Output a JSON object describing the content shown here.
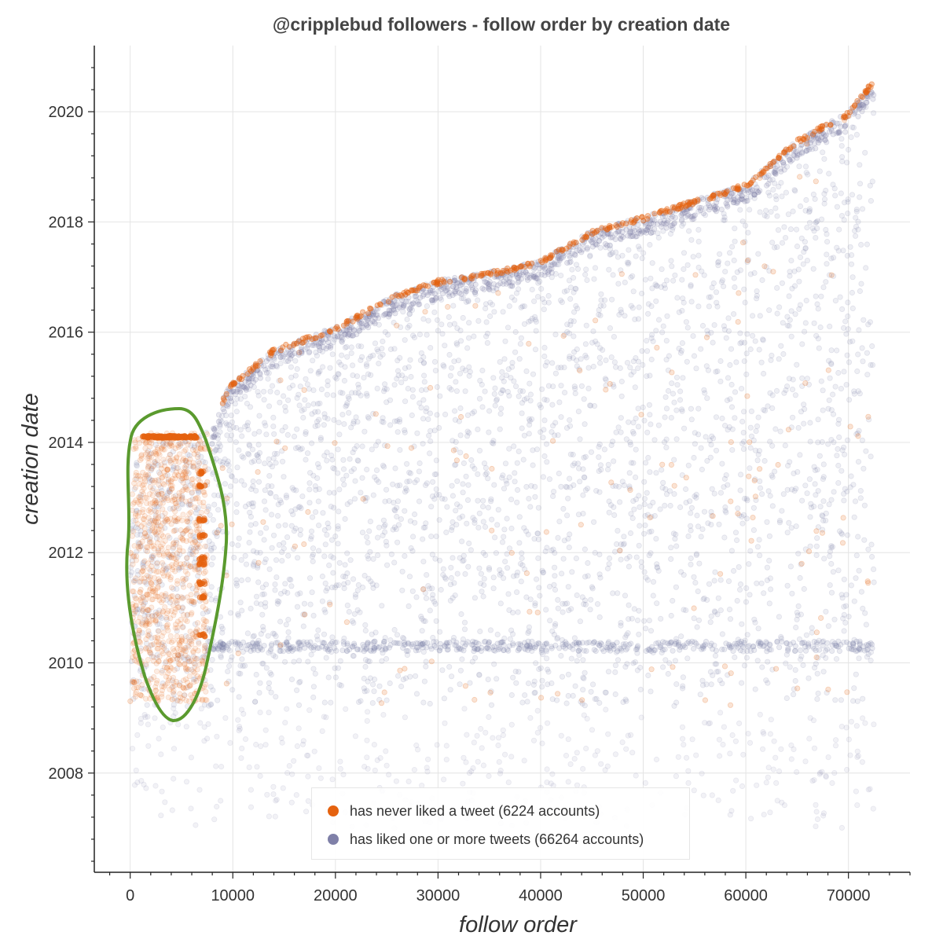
{
  "chart_data": {
    "type": "scatter",
    "title": "@cripplebud followers - follow order by creation date",
    "xlabel": "follow order",
    "ylabel": "creation date",
    "xlim": [
      -3500,
      76000
    ],
    "ylim": [
      2006.2,
      2021.2
    ],
    "x_ticks": [
      0,
      10000,
      20000,
      30000,
      40000,
      50000,
      60000,
      70000
    ],
    "y_ticks": [
      2008,
      2010,
      2012,
      2014,
      2016,
      2018,
      2020
    ],
    "grid": true,
    "legend_position": "bottom-center",
    "series": [
      {
        "name": "has never liked a tweet (6224 accounts)",
        "color": "#e5620f",
        "count": 6224,
        "clusters": [
          {
            "x_range": [
              200,
              7500
            ],
            "y_range": [
              2009.3,
              2014.2
            ],
            "note": "dense early block"
          },
          {
            "x_range": [
              1200,
              6500
            ],
            "y": 2014.1,
            "note": "horizontal band"
          },
          {
            "x": 7000,
            "y_values": [
              2010.5,
              2011.2,
              2011.45,
              2011.8,
              2011.9,
              2012.3,
              2012.6,
              2013.2,
              2013.45
            ]
          }
        ],
        "frontier_points": [
          [
            20000,
            2016.2
          ],
          [
            30000,
            2016.95
          ],
          [
            34500,
            2017.1
          ],
          [
            48000,
            2018.0
          ],
          [
            60000,
            2018.7
          ],
          [
            70000,
            2020.0
          ],
          [
            72000,
            2020.5
          ]
        ]
      },
      {
        "name": "has liked one or more tweets (66264 accounts)",
        "color": "#7f80a8",
        "count": 66264,
        "upper_envelope": [
          [
            0,
            2013.8
          ],
          [
            8000,
            2014.3
          ],
          [
            9500,
            2015.0
          ],
          [
            12000,
            2015.4
          ],
          [
            14000,
            2015.7
          ],
          [
            17000,
            2015.9
          ],
          [
            20000,
            2016.1
          ],
          [
            22000,
            2016.3
          ],
          [
            26000,
            2016.7
          ],
          [
            30000,
            2016.95
          ],
          [
            35000,
            2017.1
          ],
          [
            40000,
            2017.3
          ],
          [
            45000,
            2017.85
          ],
          [
            50000,
            2018.1
          ],
          [
            55000,
            2018.4
          ],
          [
            60000,
            2018.7
          ],
          [
            62000,
            2019.0
          ],
          [
            65000,
            2019.5
          ],
          [
            68000,
            2019.8
          ],
          [
            70000,
            2020.0
          ],
          [
            72500,
            2020.6
          ]
        ],
        "lower_bound": 2009.2,
        "band_y": 2010.3,
        "sparse_range": [
          2007.0,
          2009.2
        ],
        "x_max": 72500
      }
    ]
  },
  "annotations": {
    "circle_color": "#5a9a2e",
    "note": "hand-drawn green ellipse around early accounts block"
  }
}
